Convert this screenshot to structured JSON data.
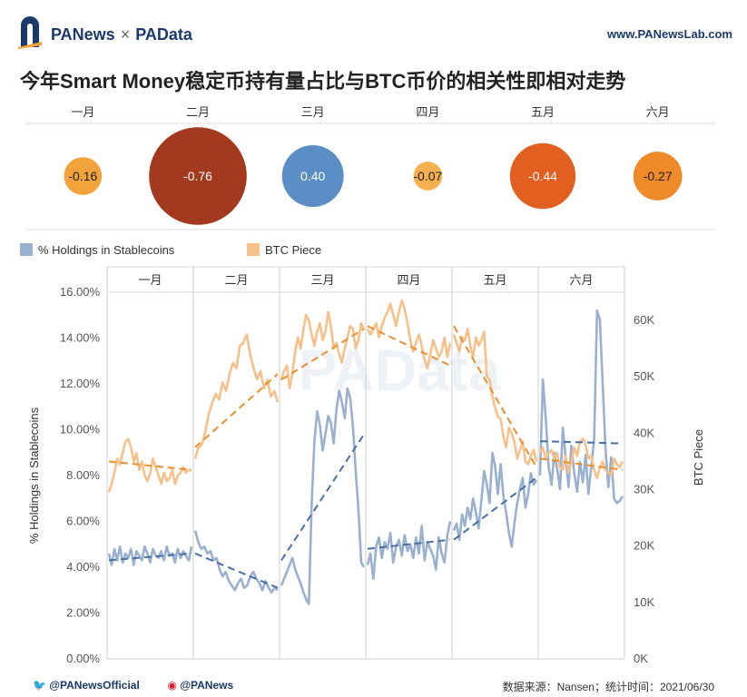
{
  "header": {
    "brand_left": "PANews",
    "brand_sep": "×",
    "brand_right": "PAData",
    "site": "www.PANewsLab.com"
  },
  "title": "今年Smart Money稳定币持有量占比与BTC币价的相关性即相对走势",
  "correlation": {
    "months": [
      "一月",
      "二月",
      "三月",
      "四月",
      "五月",
      "六月"
    ],
    "values": [
      -0.16,
      -0.76,
      0.4,
      -0.07,
      -0.44,
      -0.27
    ],
    "value_labels": [
      "-0.16",
      "-0.76",
      "0.40",
      "-0.07",
      "-0.44",
      "-0.27"
    ],
    "colors": [
      "#f2a33b",
      "#a33a1f",
      "#5b8ec4",
      "#f5b150",
      "#e1601f",
      "#ee8a2a"
    ]
  },
  "legend": {
    "series1": "% Holdings in Stablecoins",
    "series2": "BTC Piece",
    "color1": "#9ab0cf",
    "color2": "#f6c08a"
  },
  "footer": {
    "twitter": "@PANewsOfficial",
    "weibo": "@PANews",
    "source": "数据来源：Nansen；统计时间：2021/06/30"
  },
  "watermarks": [
    "PANews",
    "PAData"
  ],
  "chart_data": {
    "type": "line",
    "panels": [
      "一月",
      "二月",
      "三月",
      "四月",
      "五月",
      "六月"
    ],
    "ylabel_left": "% Holdings in Stablecoins",
    "ylabel_right": "BTC Piece",
    "ylim_left": [
      0,
      16
    ],
    "yticks_left": [
      "0.00%",
      "2.00%",
      "4.00%",
      "6.00%",
      "8.00%",
      "10.00%",
      "12.00%",
      "14.00%",
      "16.00%"
    ],
    "ylim_right": [
      0,
      65000
    ],
    "yticks_right": [
      "0K",
      "10K",
      "20K",
      "30K",
      "40K",
      "50K",
      "60K"
    ],
    "series": [
      {
        "name": "% Holdings in Stablecoins",
        "axis": "left",
        "color": "#9ab0cf",
        "trend_color": "#4a6fa5",
        "monthly": [
          [
            4.6,
            4.1,
            4.8,
            4.3,
            4.9,
            4.2,
            4.6,
            4.4,
            4.8,
            4.1,
            4.7,
            4.5,
            4.3,
            4.9,
            4.6,
            4.2,
            4.8,
            4.5,
            4.4,
            4.7,
            4.3,
            4.9,
            4.5,
            4.6,
            4.2,
            4.8,
            4.4,
            4.7,
            4.5,
            4.3,
            4.9
          ],
          [
            5.6,
            5.1,
            4.8,
            4.9,
            4.6,
            4.7,
            4.3,
            4.4,
            3.9,
            3.6,
            3.8,
            3.4,
            3.2,
            3.0,
            3.3,
            3.5,
            3.1,
            3.2,
            3.6,
            3.8,
            3.5,
            3.3,
            3.0,
            3.4,
            3.1,
            2.9,
            3.1,
            3.0
          ],
          [
            3.2,
            3.5,
            3.8,
            4.1,
            4.4,
            3.9,
            3.6,
            3.3,
            2.9,
            2.6,
            2.4,
            6.8,
            9.5,
            10.8,
            10.2,
            9.1,
            9.8,
            10.6,
            10.3,
            9.4,
            10.9,
            11.7,
            11.2,
            10.5,
            11.8,
            11.4,
            10.1,
            8.2,
            6.5,
            4.2,
            4.0
          ],
          [
            4.1,
            4.6,
            3.5,
            4.9,
            5.3,
            4.4,
            5.1,
            4.8,
            5.5,
            4.2,
            4.9,
            5.2,
            4.5,
            5.4,
            4.7,
            5.0,
            4.4,
            5.3,
            4.6,
            5.8,
            4.3,
            5.1,
            4.8,
            4.5,
            3.9,
            5.3,
            4.6,
            4.2,
            5.4,
            6.0
          ],
          [
            5.6,
            5.9,
            5.2,
            6.3,
            5.8,
            6.6,
            6.1,
            7.0,
            6.4,
            5.7,
            6.9,
            8.2,
            7.6,
            6.8,
            9.0,
            8.4,
            7.2,
            8.5,
            7.1,
            6.4,
            5.5,
            4.9,
            5.9,
            6.8,
            7.4,
            7.9,
            6.6,
            7.2,
            8.1,
            7.6,
            7.8
          ],
          [
            8.0,
            12.2,
            10.5,
            8.4,
            7.6,
            9.0,
            8.3,
            7.4,
            10.1,
            8.8,
            7.5,
            9.3,
            8.1,
            7.3,
            8.6,
            7.7,
            8.9,
            7.2,
            8.4,
            9.6,
            15.2,
            14.8,
            12.0,
            9.1,
            7.5,
            8.8,
            7.0,
            6.8,
            6.9,
            7.1
          ]
        ],
        "trend": [
          [
            4.3,
            4.6
          ],
          [
            4.6,
            3.1
          ],
          [
            4.3,
            9.8
          ],
          [
            4.8,
            5.2
          ],
          [
            5.2,
            7.9
          ],
          [
            9.5,
            9.4
          ]
        ]
      },
      {
        "name": "BTC Piece",
        "axis": "right",
        "color": "#f6c08a",
        "trend_color": "#e8902e",
        "monthly": [
          [
            29500,
            31000,
            33000,
            35500,
            34500,
            36500,
            38500,
            39000,
            37500,
            35000,
            36500,
            33500,
            35000,
            32500,
            31500,
            33000,
            35500,
            34000,
            32500,
            31000,
            33000,
            31500,
            32000,
            33500,
            31000,
            32500,
            33000,
            34000,
            33000,
            33500,
            33500
          ],
          [
            35500,
            37500,
            38000,
            40500,
            43500,
            45500,
            47000,
            46000,
            49000,
            47500,
            50500,
            52500,
            51500,
            55500,
            56000,
            57500,
            54000,
            51500,
            49500,
            51000,
            48000,
            49500,
            46500,
            47500,
            45500
          ],
          [
            49500,
            51000,
            52000,
            48000,
            50500,
            54500,
            57000,
            55000,
            58500,
            61000,
            60000,
            57500,
            55500,
            58000,
            59500,
            56500,
            58000,
            61500,
            59000,
            55000,
            56000,
            54000,
            52500,
            55000,
            57000,
            59000,
            58500,
            55000,
            56500,
            59500,
            58500
          ],
          [
            58500,
            57500,
            58500,
            59500,
            57000,
            59000,
            60500,
            61500,
            63000,
            61000,
            59000,
            61500,
            63500,
            62000,
            59500,
            56500,
            54500,
            56000,
            57500,
            55500,
            53000,
            51500,
            54000,
            56500,
            55000,
            53500,
            54500,
            57000,
            53500,
            56000
          ],
          [
            57500,
            56000,
            54500,
            57000,
            56500,
            58500,
            55500,
            53500,
            57000,
            55500,
            56500,
            58000,
            50000,
            49500,
            46500,
            44500,
            43000,
            42500,
            39500,
            37500,
            41000,
            40000,
            38500,
            35500,
            37000,
            38500,
            35000,
            34500,
            36000,
            37000,
            35000
          ],
          [
            36500,
            37500,
            35500,
            36500,
            37000,
            35500,
            36500,
            34000,
            33500,
            36000,
            33000,
            35000,
            37500,
            36000,
            38500,
            39000,
            38000,
            35500,
            36000,
            33500,
            32000,
            34000,
            35000,
            33500,
            33000,
            32500,
            35500,
            34500,
            34000,
            35000
          ]
        ],
        "trend": [
          [
            35000,
            33500
          ],
          [
            37500,
            50500
          ],
          [
            49500,
            58500
          ],
          [
            59000,
            52000
          ],
          [
            59000,
            34000
          ],
          [
            35500,
            33500
          ]
        ]
      }
    ]
  }
}
